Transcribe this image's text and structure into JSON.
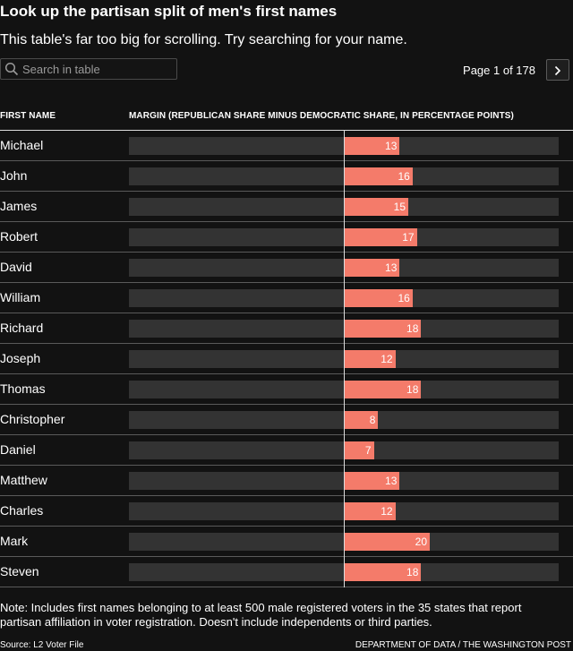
{
  "title": "Look up the partisan split of men's first names",
  "subtitle": "This table's far too big for scrolling. Try searching for your name.",
  "search": {
    "placeholder": "Search in table",
    "value": ""
  },
  "pagination": {
    "label": "Page 1 of 178",
    "next_icon": "chevron-right-icon"
  },
  "columns": {
    "name": "FIRST NAME",
    "margin": "MARGIN (REPUBLICAN SHARE MINUS DEMOCRATIC SHARE, IN PERCENTAGE POINTS)"
  },
  "colors": {
    "background": "#121212",
    "track": "#333333",
    "republican_bar": "#f47b6a"
  },
  "chart_data": {
    "type": "bar",
    "orientation": "horizontal",
    "xlim": [
      -50,
      50
    ],
    "categories": [
      "Michael",
      "John",
      "James",
      "Robert",
      "David",
      "William",
      "Richard",
      "Joseph",
      "Thomas",
      "Christopher",
      "Daniel",
      "Matthew",
      "Charles",
      "Mark",
      "Steven"
    ],
    "values": [
      13,
      16,
      15,
      17,
      13,
      16,
      18,
      12,
      18,
      8,
      7,
      13,
      12,
      20,
      18
    ]
  },
  "note": "Note: Includes first names belonging to at least 500 male registered voters in the 35 states that report partisan affiliation in voter registration. Doesn't include independents or third parties.",
  "source": "Source: L2 Voter File",
  "credit": "DEPARTMENT OF DATA / THE WASHINGTON POST"
}
